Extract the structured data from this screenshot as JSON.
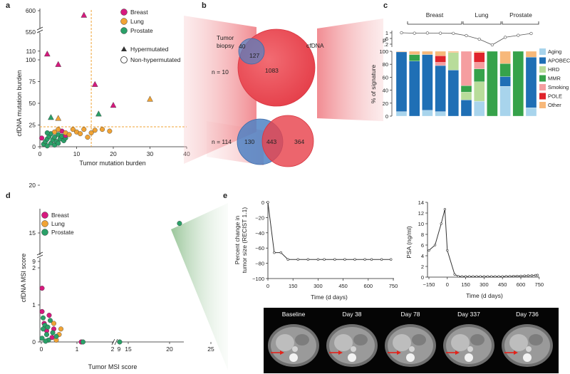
{
  "panel_labels": [
    "a",
    "b",
    "c",
    "d",
    "e"
  ],
  "colors": {
    "breast": "#d6197e",
    "lung": "#f0a335",
    "prostate": "#2aa068",
    "cfdna": "#e8434d",
    "tumor": "#4f82c4",
    "dashed": "#f0a335"
  },
  "chart_data": [
    {
      "id": "a",
      "type": "scatter",
      "xlabel": "Tumor mutation burden",
      "ylabel": "cfDNA  mutation burden",
      "xlim": [
        0,
        40
      ],
      "xticks": [
        "0",
        "10",
        "20",
        "30",
        "40"
      ],
      "yticks_low": [
        "0",
        "25",
        "50",
        "75",
        "100",
        "110"
      ],
      "yticks_high": [
        "550",
        "600"
      ],
      "thresholds": {
        "x": 14,
        "y": 23
      },
      "legend": [
        "Breast",
        "Lung",
        "Prostate"
      ],
      "marker_legend": [
        "Hypermutated",
        "Non-hypermutated"
      ],
      "hyper_points": [
        {
          "x": 12,
          "y": 590,
          "group": "breast"
        },
        {
          "x": 2,
          "y": 107,
          "group": "breast"
        },
        {
          "x": 5,
          "y": 95,
          "group": "breast"
        },
        {
          "x": 15,
          "y": 72,
          "group": "breast"
        },
        {
          "x": 20,
          "y": 48,
          "group": "breast"
        },
        {
          "x": 30,
          "y": 55,
          "group": "lung"
        },
        {
          "x": 16,
          "y": 38,
          "group": "prostate"
        },
        {
          "x": 3,
          "y": 34,
          "group": "prostate"
        },
        {
          "x": 5,
          "y": 33,
          "group": "lung"
        }
      ],
      "non_points": [
        {
          "x": 0.5,
          "y": 10,
          "group": "breast"
        },
        {
          "x": 1,
          "y": 3,
          "group": "prostate"
        },
        {
          "x": 1.5,
          "y": 6,
          "group": "prostate"
        },
        {
          "x": 2,
          "y": 1,
          "group": "prostate"
        },
        {
          "x": 2,
          "y": 9,
          "group": "prostate"
        },
        {
          "x": 2.5,
          "y": 12,
          "group": "prostate"
        },
        {
          "x": 3,
          "y": 4,
          "group": "prostate"
        },
        {
          "x": 3,
          "y": 15,
          "group": "prostate"
        },
        {
          "x": 3.5,
          "y": 8,
          "group": "prostate"
        },
        {
          "x": 4,
          "y": 2,
          "group": "prostate"
        },
        {
          "x": 4,
          "y": 11,
          "group": "prostate"
        },
        {
          "x": 4.5,
          "y": 6,
          "group": "prostate"
        },
        {
          "x": 5,
          "y": 14,
          "group": "prostate"
        },
        {
          "x": 5,
          "y": 4,
          "group": "prostate"
        },
        {
          "x": 5.5,
          "y": 9,
          "group": "prostate"
        },
        {
          "x": 6,
          "y": 12,
          "group": "prostate"
        },
        {
          "x": 6.5,
          "y": 7,
          "group": "prostate"
        },
        {
          "x": 7,
          "y": 10,
          "group": "prostate"
        },
        {
          "x": 2,
          "y": 16,
          "group": "prostate"
        },
        {
          "x": 7,
          "y": 13,
          "group": "breast"
        },
        {
          "x": 6,
          "y": 18,
          "group": "breast"
        },
        {
          "x": 4,
          "y": 17,
          "group": "lung"
        },
        {
          "x": 5,
          "y": 20,
          "group": "lung"
        },
        {
          "x": 7,
          "y": 16,
          "group": "lung"
        },
        {
          "x": 9,
          "y": 20,
          "group": "lung"
        },
        {
          "x": 10,
          "y": 17,
          "group": "lung"
        },
        {
          "x": 11,
          "y": 15,
          "group": "lung"
        },
        {
          "x": 12,
          "y": 20,
          "group": "lung"
        },
        {
          "x": 14,
          "y": 16,
          "group": "lung"
        },
        {
          "x": 15,
          "y": 19,
          "group": "lung"
        },
        {
          "x": 17,
          "y": 20,
          "group": "lung"
        },
        {
          "x": 19,
          "y": 18,
          "group": "lung"
        },
        {
          "x": 8,
          "y": 14,
          "group": "lung"
        },
        {
          "x": 13,
          "y": 11,
          "group": "lung"
        }
      ]
    },
    {
      "id": "c",
      "type": "bar",
      "ylabel": "% of signature",
      "p_label": "p",
      "p_ticks": [
        "1",
        ".6",
        ".2"
      ],
      "groups": [
        "Breast",
        "Lung",
        "Prostate"
      ],
      "yticks": [
        "0",
        "20",
        "40",
        "60",
        "80",
        "100"
      ],
      "series_names": [
        "Aging",
        "APOBEC",
        "HRD",
        "MMR",
        "Smoking",
        "POLE",
        "Other"
      ],
      "series_colors": [
        "#a8d4ec",
        "#1f6fb5",
        "#b8dc9a",
        "#36a24a",
        "#f59ea0",
        "#e0232b",
        "#f7b87a"
      ],
      "stacks": [
        [
          7,
          92,
          0,
          0,
          0,
          0,
          1
        ],
        [
          0,
          85,
          0,
          10,
          0,
          0,
          5
        ],
        [
          9,
          86,
          0,
          0,
          0,
          0,
          5
        ],
        [
          7,
          71,
          0,
          0,
          5,
          10,
          7
        ],
        [
          0,
          71,
          27,
          0,
          0,
          0,
          2
        ],
        [
          0,
          25,
          12,
          10,
          53,
          0,
          0
        ],
        [
          23,
          0,
          30,
          20,
          10,
          15,
          2
        ],
        [
          0,
          0,
          0,
          100,
          0,
          0,
          0
        ],
        [
          46,
          15,
          0,
          20,
          0,
          0,
          19
        ],
        [
          0,
          0,
          0,
          100,
          0,
          0,
          0
        ],
        [
          13,
          78,
          0,
          0,
          0,
          0,
          9
        ]
      ],
      "p_values": [
        1,
        0.97,
        0.98,
        0.97,
        0.96,
        0.8,
        0.55,
        0.15,
        0.68,
        0.82,
        0.95
      ]
    },
    {
      "id": "d",
      "type": "scatter",
      "xlabel": "Tumor MSI score",
      "ylabel": "cfDNA MSI score",
      "legend": [
        "Breast",
        "Lung",
        "Prostate"
      ],
      "xticks_low": [
        "0",
        "1",
        "2"
      ],
      "xticks_high": [
        "9",
        "15",
        "20",
        "25"
      ],
      "yticks_low": [
        "0",
        "1",
        "2"
      ],
      "yticks_high": [
        "9",
        "15",
        "20"
      ],
      "points": [
        {
          "x": 0.02,
          "y": 1.45,
          "group": "breast"
        },
        {
          "x": 0.02,
          "y": 0.82,
          "group": "breast"
        },
        {
          "x": 0.22,
          "y": 0.72,
          "group": "breast"
        },
        {
          "x": 0.08,
          "y": 0.5,
          "group": "breast"
        },
        {
          "x": 0.3,
          "y": 0.12,
          "group": "breast"
        },
        {
          "x": 0.35,
          "y": 0.35,
          "group": "breast"
        },
        {
          "x": 0.15,
          "y": 0.3,
          "group": "breast"
        },
        {
          "x": 0.42,
          "y": 0.05,
          "group": "lung"
        },
        {
          "x": 0.5,
          "y": 0.2,
          "group": "lung"
        },
        {
          "x": 0.55,
          "y": 0.35,
          "group": "lung"
        },
        {
          "x": 0.35,
          "y": 0.5,
          "group": "lung"
        },
        {
          "x": 0.05,
          "y": 0.65,
          "group": "prostate"
        },
        {
          "x": 0.1,
          "y": 0.45,
          "group": "prostate"
        },
        {
          "x": 0.15,
          "y": 0.2,
          "group": "prostate"
        },
        {
          "x": 0.2,
          "y": 0.05,
          "group": "prostate"
        },
        {
          "x": 0.02,
          "y": 0.1,
          "group": "prostate"
        },
        {
          "x": 0.25,
          "y": 0.58,
          "group": "prostate"
        },
        {
          "x": 0.05,
          "y": 0.35,
          "group": "prostate"
        },
        {
          "x": 0.18,
          "y": 0.4,
          "group": "prostate"
        },
        {
          "x": 0.32,
          "y": 0.25,
          "group": "prostate"
        },
        {
          "x": 0.42,
          "y": 0.15,
          "group": "prostate"
        },
        {
          "x": 0.12,
          "y": 0.02,
          "group": "prostate"
        },
        {
          "x": 1.12,
          "y": 0,
          "group": "breast"
        },
        {
          "x": 1.17,
          "y": 0,
          "group": "prostate"
        },
        {
          "x": 9.5,
          "y": 0,
          "group": "prostate"
        },
        {
          "x": 21.2,
          "y": 16,
          "group": "prostate"
        }
      ]
    },
    {
      "id": "e1",
      "type": "line",
      "xlabel": "Time (d days)",
      "ylabel": [
        "Percent change in",
        "tumor size (RECIST 1.1)"
      ],
      "xlim": [
        0,
        750
      ],
      "ylim": [
        -100,
        0
      ],
      "xticks": [
        "0",
        "150",
        "300",
        "450",
        "600",
        "750"
      ],
      "yticks": [
        "0",
        "−20",
        "−40",
        "−60",
        "−80",
        "−100"
      ],
      "x": [
        0,
        38,
        78,
        120,
        180,
        240,
        300,
        337,
        400,
        460,
        520,
        580,
        620,
        680,
        736
      ],
      "y": [
        0,
        -66,
        -66,
        -75,
        -75,
        -75,
        -75,
        -75,
        -75,
        -75,
        -75,
        -75,
        -75,
        -75,
        -75
      ]
    },
    {
      "id": "e2",
      "type": "line",
      "xlabel": "Time (d days)",
      "ylabel": "PSA (ng/ml)",
      "xlim": [
        -150,
        750
      ],
      "ylim": [
        0,
        14
      ],
      "xticks": [
        "−150",
        "0",
        "150",
        "300",
        "450",
        "600",
        "750"
      ],
      "yticks": [
        "0",
        "2",
        "4",
        "6",
        "8",
        "10",
        "12",
        "14"
      ],
      "x": [
        -150,
        -100,
        -50,
        -20,
        0,
        60,
        90,
        120,
        150,
        180,
        210,
        240,
        270,
        300,
        330,
        360,
        390,
        420,
        450,
        480,
        510,
        540,
        570,
        600,
        630,
        660,
        690,
        720,
        736
      ],
      "y": [
        5,
        6,
        10,
        12.7,
        5,
        0.5,
        0.15,
        0.12,
        0.12,
        0.12,
        0.12,
        0.12,
        0.12,
        0.12,
        0.12,
        0.12,
        0.12,
        0.12,
        0.12,
        0.15,
        0.15,
        0.18,
        0.2,
        0.22,
        0.25,
        0.28,
        0.3,
        0.35,
        0.38
      ]
    }
  ],
  "venn": {
    "tumor_label": [
      "Tumor",
      "biopsy"
    ],
    "cfdna_label": "cfDNA",
    "top": {
      "n": "n = 10",
      "tumor_only": "40",
      "overlap": "127",
      "cfdna_only": "1083"
    },
    "bottom": {
      "n": "n = 114",
      "tumor_only": "130",
      "overlap": "443",
      "cfdna_only": "364"
    }
  },
  "ct_labels": [
    "Baseline",
    "Day 38",
    "Day 78",
    "Day 337",
    "Day 736"
  ]
}
